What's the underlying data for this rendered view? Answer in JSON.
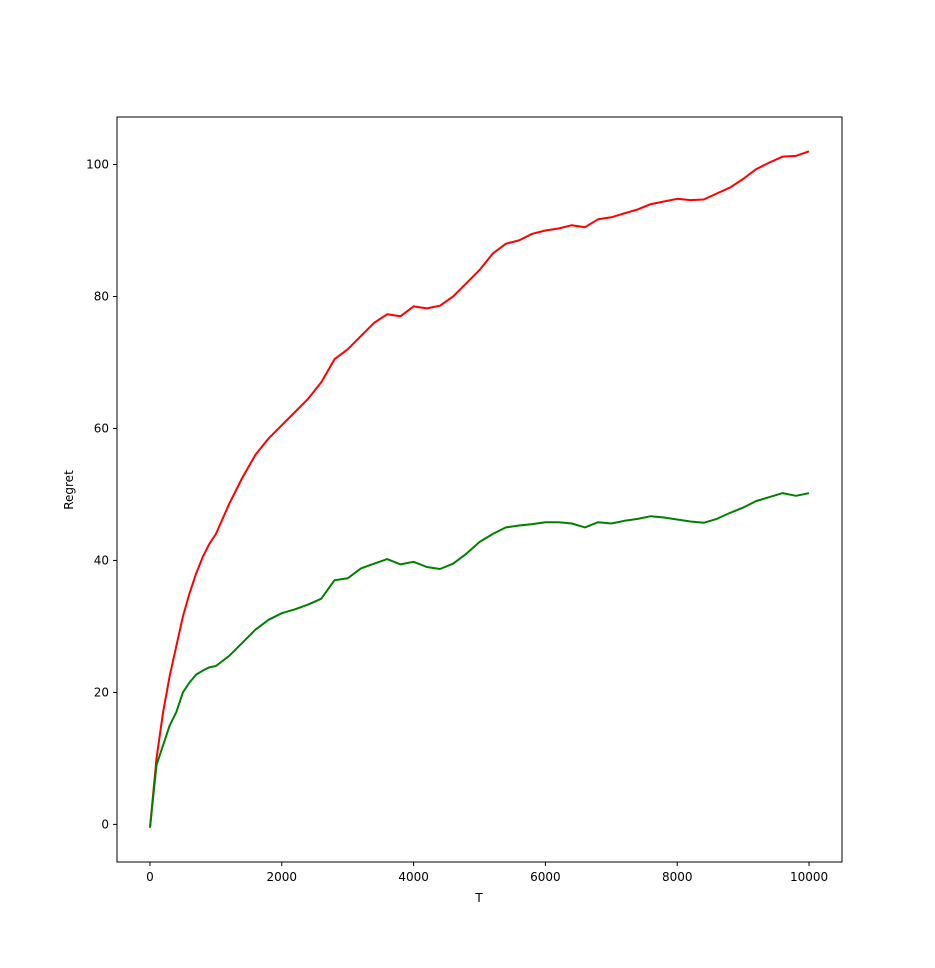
{
  "chart_data": {
    "type": "line",
    "title": "",
    "xlabel": "T",
    "ylabel": "Regret",
    "xlim": [
      -500,
      10500
    ],
    "ylim": [
      -5.7,
      107.2
    ],
    "xticks": [
      0,
      2000,
      4000,
      6000,
      8000,
      10000
    ],
    "yticks": [
      0,
      20,
      40,
      60,
      80,
      100
    ],
    "grid": false,
    "legend": "none",
    "series": [
      {
        "color": "#ff0000",
        "x": [
          0,
          100,
          200,
          300,
          400,
          500,
          600,
          700,
          800,
          900,
          1000,
          1200,
          1400,
          1600,
          1800,
          2000,
          2200,
          2400,
          2600,
          2800,
          3000,
          3200,
          3400,
          3600,
          3800,
          4000,
          4200,
          4400,
          4600,
          4800,
          5000,
          5200,
          5400,
          5600,
          5800,
          6000,
          6200,
          6400,
          6600,
          6800,
          7000,
          7200,
          7400,
          7600,
          7800,
          8000,
          8200,
          8400,
          8600,
          8800,
          9000,
          9200,
          9400,
          9600,
          9800,
          10000
        ],
        "y": [
          -0.5,
          10.0,
          17.0,
          22.5,
          27.0,
          31.5,
          35.0,
          38.0,
          40.5,
          42.5,
          44.0,
          48.5,
          52.5,
          56.0,
          58.5,
          60.5,
          62.5,
          64.5,
          67.0,
          70.5,
          72.0,
          74.0,
          76.0,
          77.3,
          77.0,
          78.5,
          78.2,
          78.6,
          80.0,
          82.0,
          84.0,
          86.5,
          88.0,
          88.5,
          89.5,
          90.0,
          90.3,
          90.8,
          90.5,
          91.7,
          92.0,
          92.6,
          93.2,
          94.0,
          94.4,
          94.8,
          94.6,
          94.7,
          95.6,
          96.5,
          97.8,
          99.3,
          100.3,
          101.2,
          101.3,
          102.0
        ]
      },
      {
        "color": "#008000",
        "x": [
          0,
          100,
          200,
          300,
          400,
          500,
          600,
          700,
          800,
          900,
          1000,
          1200,
          1400,
          1600,
          1800,
          2000,
          2200,
          2400,
          2600,
          2800,
          3000,
          3200,
          3400,
          3600,
          3800,
          4000,
          4200,
          4400,
          4600,
          4800,
          5000,
          5200,
          5400,
          5600,
          5800,
          6000,
          6200,
          6400,
          6600,
          6800,
          7000,
          7200,
          7400,
          7600,
          7800,
          8000,
          8200,
          8400,
          8600,
          8800,
          9000,
          9200,
          9400,
          9600,
          9800,
          10000
        ],
        "y": [
          -0.5,
          9.0,
          12.0,
          15.0,
          17.0,
          20.0,
          21.5,
          22.7,
          23.3,
          23.8,
          24.0,
          25.5,
          27.5,
          29.5,
          31.0,
          32.0,
          32.6,
          33.3,
          34.2,
          37.0,
          37.3,
          38.8,
          39.5,
          40.2,
          39.4,
          39.8,
          39.0,
          38.7,
          39.5,
          41.0,
          42.8,
          44.0,
          45.0,
          45.3,
          45.5,
          45.8,
          45.8,
          45.6,
          45.0,
          45.8,
          45.6,
          46.0,
          46.3,
          46.7,
          46.5,
          46.2,
          45.9,
          45.7,
          46.3,
          47.2,
          48.0,
          49.0,
          49.6,
          50.2,
          49.8,
          50.2
        ]
      }
    ]
  }
}
